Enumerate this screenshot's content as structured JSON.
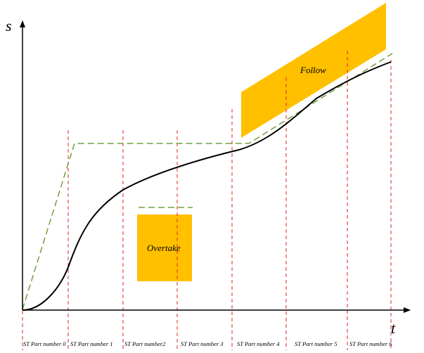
{
  "axes": {
    "y_label": "s",
    "x_label": "t"
  },
  "segments": [
    "ST Part number 0",
    "ST Part number 1",
    "ST Part number2",
    "ST Part number 3",
    "ST Part number 4",
    "ST Part number 5",
    "ST Part number 6"
  ],
  "regions": {
    "follow": "Follow",
    "overtake": "Overtake"
  },
  "colors": {
    "region_fill": "#FFC000",
    "segment_line": "#E02020",
    "trajectory": "#000000",
    "planned_path": "#70A040",
    "axis": "#000000"
  }
}
